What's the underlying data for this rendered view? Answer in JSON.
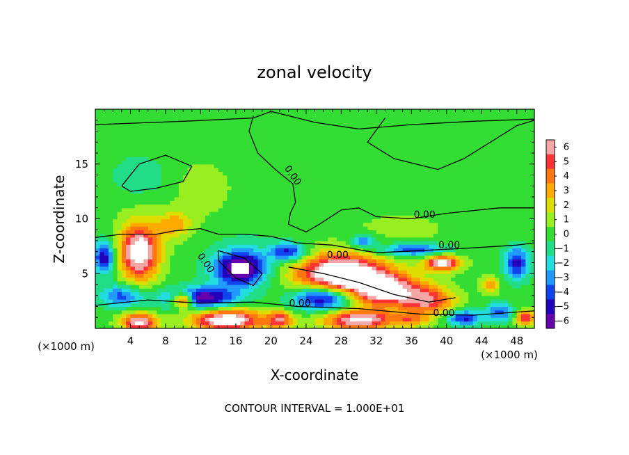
{
  "chart_data": {
    "type": "heatmap",
    "title": "zonal velocity",
    "xlabel": "X-coordinate",
    "ylabel": "Z-coordinate",
    "x_unit": "(×1000 m)",
    "y_unit": "(×1000 m)",
    "xlim": [
      0,
      50
    ],
    "ylim": [
      0,
      20
    ],
    "x_ticks": [
      4,
      8,
      12,
      16,
      20,
      24,
      28,
      32,
      36,
      40,
      44,
      48
    ],
    "y_ticks": [
      5,
      10,
      15
    ],
    "colorbar": {
      "ticks": [
        6,
        5,
        4,
        3,
        2,
        1,
        0,
        -1,
        -2,
        -3,
        -4,
        -5,
        -6
      ],
      "colors": [
        "#f4a6a6",
        "#ff3333",
        "#ff7711",
        "#ffaa00",
        "#dddd00",
        "#99ee22",
        "#33dd33",
        "#22dd88",
        "#22dddd",
        "#2299ff",
        "#1144ee",
        "#2200bb",
        "#6600aa"
      ]
    },
    "contour_labels": [
      "0.00",
      "0.00",
      "0.00",
      "0.00",
      "0.00",
      "0.00",
      "0.00"
    ],
    "footnote": "CONTOUR INTERVAL = 1.000E+01",
    "blobs": [
      {
        "x": 25,
        "z": 13,
        "v": 0.3,
        "sx": 30,
        "sz": 8
      },
      {
        "x": 5,
        "z": 14,
        "v": -1.6,
        "sx": 3.2,
        "sz": 1.8
      },
      {
        "x": 12,
        "z": 12.5,
        "v": 0.8,
        "sx": 3,
        "sz": 2.5
      },
      {
        "x": 18,
        "z": 8,
        "v": -0.6,
        "sx": 6,
        "sz": 2.5
      },
      {
        "x": 35,
        "z": 9,
        "v": 0.6,
        "sx": 5,
        "sz": 1.5
      },
      {
        "x": 5,
        "z": 7,
        "v": 8,
        "sx": 2.2,
        "sz": 2.5
      },
      {
        "x": 9,
        "z": 9.5,
        "v": 3,
        "sx": 2,
        "sz": 1.2
      },
      {
        "x": 1,
        "z": 6.5,
        "v": -5.5,
        "sx": 1.2,
        "sz": 1.5
      },
      {
        "x": 16.5,
        "z": 5.5,
        "v": -7.5,
        "sx": 3,
        "sz": 1.6
      },
      {
        "x": 22,
        "z": 7,
        "v": -5,
        "sx": 2,
        "sz": 0.8
      },
      {
        "x": 28,
        "z": 5,
        "v": 9,
        "sx": 5,
        "sz": 1.8
      },
      {
        "x": 33,
        "z": 3.5,
        "v": 7,
        "sx": 4,
        "sz": 1.5
      },
      {
        "x": 38,
        "z": 2.5,
        "v": 5,
        "sx": 3,
        "sz": 1.3
      },
      {
        "x": 39.5,
        "z": 6,
        "v": 7,
        "sx": 2,
        "sz": 0.7
      },
      {
        "x": 36,
        "z": 7.2,
        "v": -4.5,
        "sx": 4,
        "sz": 0.6
      },
      {
        "x": 30.5,
        "z": 8,
        "v": -4,
        "sx": 1.5,
        "sz": 0.6
      },
      {
        "x": 26,
        "z": 2.8,
        "v": -6.5,
        "sx": 3.5,
        "sz": 1.1
      },
      {
        "x": 12,
        "z": 2.8,
        "v": -6.5,
        "sx": 4,
        "sz": 1
      },
      {
        "x": 3,
        "z": 3,
        "v": -4,
        "sx": 2.5,
        "sz": 1
      },
      {
        "x": 10,
        "z": 2.6,
        "v": 8,
        "sx": 1.2,
        "sz": 0.7
      },
      {
        "x": 15,
        "z": 0.8,
        "v": 8,
        "sx": 4,
        "sz": 1
      },
      {
        "x": 5,
        "z": 0.6,
        "v": 7,
        "sx": 2,
        "sz": 0.8
      },
      {
        "x": 21,
        "z": 0.8,
        "v": 5,
        "sx": 1.5,
        "sz": 0.8
      },
      {
        "x": 30,
        "z": 0.8,
        "v": 7,
        "sx": 4,
        "sz": 0.9
      },
      {
        "x": 45,
        "z": 4,
        "v": 3,
        "sx": 1,
        "sz": 0.8
      },
      {
        "x": 48,
        "z": 6,
        "v": -5,
        "sx": 1.5,
        "sz": 1.5
      },
      {
        "x": 42,
        "z": 1,
        "v": -5,
        "sx": 2,
        "sz": 0.7
      },
      {
        "x": 46,
        "z": 1.5,
        "v": -4,
        "sx": 1.5,
        "sz": 0.8
      },
      {
        "x": 49,
        "z": 1,
        "v": 6,
        "sx": 1,
        "sz": 0.7
      },
      {
        "x": 36,
        "z": 0.8,
        "v": 3,
        "sx": 2,
        "sz": 0.6
      }
    ],
    "zero_contours": [
      [
        [
          0,
          18.6
        ],
        [
          10,
          18.9
        ],
        [
          18,
          19.2
        ],
        [
          20,
          19.8
        ],
        [
          25,
          18.8
        ],
        [
          30,
          18.2
        ],
        [
          36,
          18.6
        ],
        [
          43,
          18.9
        ],
        [
          50,
          19.1
        ]
      ],
      [
        [
          3,
          13
        ],
        [
          5,
          15
        ],
        [
          8,
          15.8
        ],
        [
          11,
          14.8
        ],
        [
          10,
          13.4
        ],
        [
          7,
          12.8
        ],
        [
          4,
          12.5
        ],
        [
          3,
          13
        ]
      ],
      [
        [
          18,
          19.4
        ],
        [
          17.5,
          18
        ],
        [
          18.5,
          16
        ],
        [
          20.5,
          14.5
        ],
        [
          22.5,
          13.2
        ],
        [
          22.8,
          11.5
        ],
        [
          22.2,
          10.5
        ],
        [
          22,
          9.5
        ],
        [
          24,
          8.8
        ],
        [
          25.5,
          9.5
        ],
        [
          28,
          10.8
        ],
        [
          30,
          11
        ],
        [
          32,
          10.2
        ],
        [
          36,
          10
        ],
        [
          40,
          10.5
        ],
        [
          46,
          11
        ],
        [
          50,
          11
        ]
      ],
      [
        [
          33,
          19.2
        ],
        [
          31,
          17
        ],
        [
          34,
          15.5
        ],
        [
          39,
          14.5
        ],
        [
          42,
          15.5
        ],
        [
          45,
          17
        ],
        [
          48,
          18.5
        ],
        [
          50,
          19
        ]
      ],
      [
        [
          0,
          8.3
        ],
        [
          3,
          8.6
        ],
        [
          7,
          8.6
        ],
        [
          9,
          8.9
        ],
        [
          12,
          9.1
        ],
        [
          14,
          8.6
        ],
        [
          17,
          8.6
        ],
        [
          20,
          8.4
        ],
        [
          23,
          7.8
        ],
        [
          27,
          7.6
        ],
        [
          32,
          6.9
        ],
        [
          37,
          7.1
        ],
        [
          42,
          7.3
        ],
        [
          48,
          7.6
        ],
        [
          50,
          7.8
        ]
      ],
      [
        [
          14,
          7.1
        ],
        [
          17,
          6.4
        ],
        [
          19,
          5
        ],
        [
          18,
          3.9
        ],
        [
          16,
          4.6
        ],
        [
          14,
          6.2
        ],
        [
          14,
          7.1
        ]
      ],
      [
        [
          0,
          2.1
        ],
        [
          6,
          2.6
        ],
        [
          12,
          2.3
        ],
        [
          18,
          2.4
        ],
        [
          23,
          2
        ],
        [
          30,
          1.8
        ],
        [
          37,
          1.3
        ],
        [
          43,
          1.2
        ],
        [
          50,
          1.6
        ]
      ],
      [
        [
          22,
          5.6
        ],
        [
          26,
          5
        ],
        [
          30,
          4.2
        ],
        [
          34,
          3.1
        ],
        [
          38,
          2.4
        ],
        [
          41,
          2.8
        ]
      ]
    ]
  }
}
